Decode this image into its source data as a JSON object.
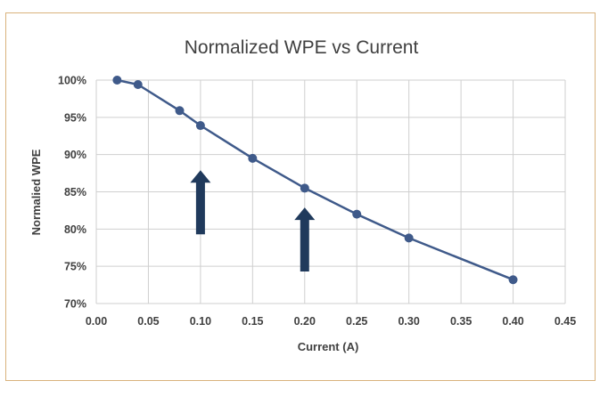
{
  "chart_data": {
    "type": "line",
    "title": "Normalized WPE vs Current",
    "xlabel": "Current (A)",
    "ylabel": "Normalied WPE",
    "xlim": [
      0,
      0.45
    ],
    "ylim": [
      70,
      100
    ],
    "x_ticks": [
      "0.00",
      "0.05",
      "0.10",
      "0.15",
      "0.20",
      "0.25",
      "0.30",
      "0.35",
      "0.40",
      "0.45"
    ],
    "y_ticks": [
      "70%",
      "75%",
      "80%",
      "85%",
      "90%",
      "95%",
      "100%"
    ],
    "grid": true,
    "series": [
      {
        "x": [
          0.02,
          0.04,
          0.08,
          0.1,
          0.15,
          0.2,
          0.25,
          0.3,
          0.4
        ],
        "values": [
          100.0,
          99.4,
          95.9,
          93.9,
          89.5,
          85.5,
          82.0,
          78.8,
          73.2
        ]
      }
    ],
    "annotations": [
      {
        "type": "arrow-up",
        "x": 0.1,
        "y_from": 79.3,
        "y_to": 87.9
      },
      {
        "type": "arrow-up",
        "x": 0.2,
        "y_from": 74.3,
        "y_to": 82.9
      }
    ],
    "colors": {
      "series": "#3f5a8a",
      "arrow": "#203a5c",
      "grid": "#cfcfcf",
      "border": "#d9b27c"
    }
  }
}
